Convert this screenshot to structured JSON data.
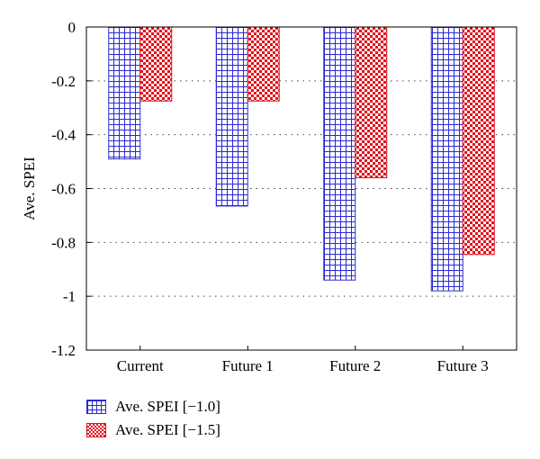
{
  "chart_data": {
    "type": "bar",
    "categories": [
      "Current",
      "Future 1",
      "Future 2",
      "Future 3"
    ],
    "series": [
      {
        "name": "Ave. SPEI [−1.0]",
        "values": [
          -0.49,
          -0.665,
          -0.94,
          -0.98
        ],
        "color": "#2b2bd4",
        "pattern": "grid"
      },
      {
        "name": "Ave. SPEI [−1.5]",
        "values": [
          -0.275,
          -0.275,
          -0.56,
          -0.845
        ],
        "color": "#e0141e",
        "pattern": "checker"
      }
    ],
    "ylabel": "Ave. SPEI",
    "xlabel": "",
    "title": "",
    "ylim": [
      -1.2,
      0
    ],
    "yticks": [
      0,
      -0.2,
      -0.4,
      -0.6,
      -0.8,
      -1,
      -1.2
    ],
    "ytick_labels": [
      "0",
      "-0.2",
      "-0.4",
      "-0.6",
      "-0.8",
      "-1",
      "-1.2"
    ],
    "grid": "dotted horizontal",
    "legend_position": "bottom-left"
  }
}
